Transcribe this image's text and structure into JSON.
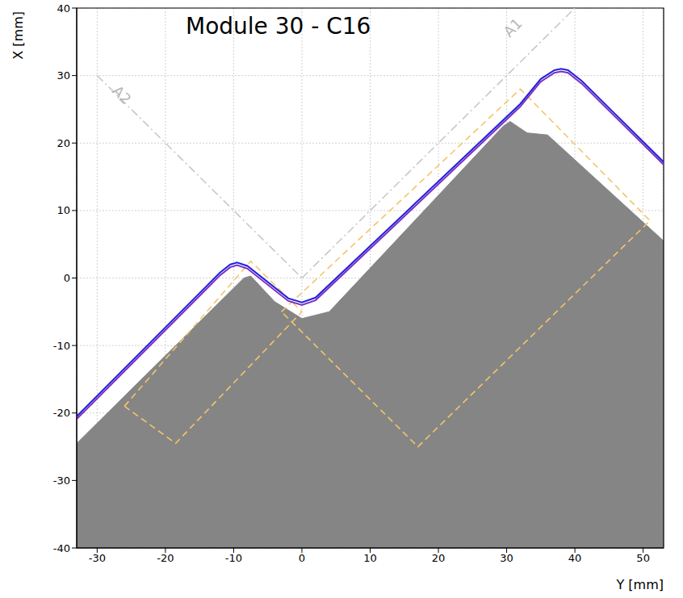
{
  "chart_data": {
    "type": "line",
    "title": "Module 30 - C16",
    "x_label": "Y [mm]",
    "y_label": "X [mm]",
    "xlim": [
      -33,
      53
    ],
    "xticks": [
      -30,
      -20,
      -10,
      0,
      10,
      20,
      30,
      40,
      50
    ],
    "ylim": [
      -40,
      40
    ],
    "yticks": [
      -40,
      -30,
      -20,
      -10,
      0,
      10,
      20,
      30,
      40
    ],
    "grid": true,
    "series": [
      {
        "type": "area",
        "color": "#858585",
        "x": [
          -33,
          -8.5,
          -7.5,
          -4,
          0,
          4,
          29.5,
          30.5,
          33,
          36,
          53
        ],
        "values": [
          [
            -40,
            -24.5
          ],
          [
            -40,
            0
          ],
          [
            -40,
            0.3
          ],
          [
            -40,
            -3.5
          ],
          [
            -40,
            -6
          ],
          [
            -40,
            -5
          ],
          [
            -40,
            22.5
          ],
          [
            -40,
            23.2
          ],
          [
            -40,
            21.5
          ],
          [
            -40,
            21.2
          ],
          [
            -40,
            5.5
          ]
        ]
      },
      {
        "type": "line",
        "color": "#f5c46b",
        "line_style": "dashed",
        "x": [
          -26,
          -7.5,
          0,
          -18.5,
          -26
        ],
        "values": [
          -19,
          2.5,
          -5,
          -24.5,
          -19
        ]
      },
      {
        "type": "line",
        "color": "#f5c46b",
        "line_style": "dashed",
        "x": [
          -3,
          32,
          51,
          17,
          -3
        ],
        "values": [
          -5,
          28,
          8.5,
          -25,
          -5
        ]
      },
      {
        "type": "line",
        "color": "#c8c8c8",
        "line_style": "dashdot",
        "x": [
          0,
          40
        ],
        "values": [
          0,
          40
        ]
      },
      {
        "type": "line",
        "color": "#c8c8c8",
        "line_style": "dashdot",
        "x": [
          -30,
          0
        ],
        "values": [
          30,
          0
        ]
      },
      {
        "type": "line",
        "color": "#7b2fbf",
        "line_style": "solid",
        "x": [
          -33,
          -12,
          -10.5,
          -9.5,
          -8,
          -2,
          0,
          2,
          32,
          35,
          37,
          38,
          39,
          41,
          53
        ],
        "values": [
          -20.9,
          0.4,
          1.6,
          1.9,
          1.4,
          -3.4,
          -4,
          -3.3,
          25.4,
          29.1,
          30.4,
          30.6,
          30.4,
          28.8,
          16.8
        ]
      },
      {
        "type": "line",
        "color": "#1f1fe0",
        "line_style": "solid",
        "x": [
          -33,
          -12,
          -10.5,
          -9.5,
          -8,
          -2,
          0,
          2,
          32,
          35,
          37,
          38,
          39,
          41,
          53
        ],
        "values": [
          -20.5,
          0.8,
          2,
          2.3,
          1.8,
          -3,
          -3.6,
          -2.9,
          25.8,
          29.5,
          30.8,
          31,
          30.8,
          29.2,
          17.2
        ]
      }
    ],
    "annotations": [
      {
        "text": "A1",
        "x": 31,
        "y": 37
      },
      {
        "text": "A2",
        "x": -26.5,
        "y": 27
      }
    ]
  }
}
